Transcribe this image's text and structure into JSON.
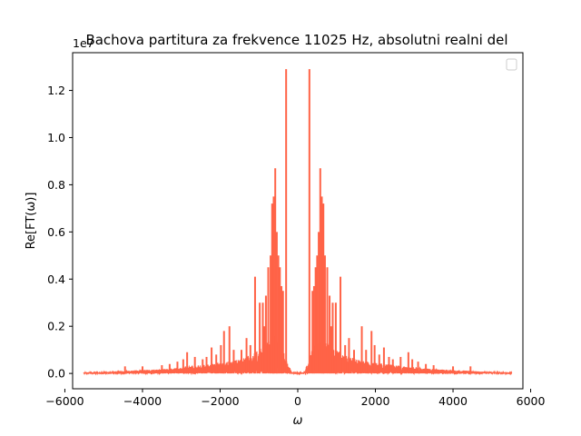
{
  "chart_data": {
    "type": "line",
    "title": "Bachova partitura za frekvence 11025 Hz, absolutni realni del",
    "xlabel": "ω",
    "ylabel": "Re[FT(ω)]",
    "y_offset_label": "1e7",
    "xlim": [
      -5800,
      5800
    ],
    "ylim": [
      -0.065,
      1.36
    ],
    "y_scale": 10000000,
    "x_ticks": [
      -6000,
      -4000,
      -2000,
      0,
      2000,
      4000,
      6000
    ],
    "x_tick_labels": [
      "−6000",
      "−4000",
      "−2000",
      "0",
      "2000",
      "4000",
      "6000"
    ],
    "y_ticks": [
      0.0,
      0.2,
      0.4,
      0.6,
      0.8,
      1.0,
      1.2
    ],
    "y_tick_labels": [
      "0.0",
      "0.2",
      "0.4",
      "0.6",
      "0.8",
      "1.0",
      "1.2"
    ],
    "legend": "top-right",
    "legend_empty": true,
    "series": [
      {
        "color": "#FF6347",
        "baseline": [
          [
            -5512,
            0.004
          ],
          [
            -5000,
            0.006
          ],
          [
            -4500,
            0.01
          ],
          [
            -4000,
            0.015
          ],
          [
            -3500,
            0.018
          ],
          [
            -3000,
            0.025
          ],
          [
            -2500,
            0.035
          ],
          [
            -2000,
            0.045
          ],
          [
            -1500,
            0.06
          ],
          [
            -1200,
            0.08
          ],
          [
            -1000,
            0.1
          ],
          [
            -800,
            0.13
          ],
          [
            -600,
            0.16
          ],
          [
            -400,
            0.12
          ],
          [
            -260,
            0.04
          ],
          [
            -150,
            0.005
          ],
          [
            0,
            0.003
          ],
          [
            150,
            0.005
          ],
          [
            260,
            0.04
          ],
          [
            400,
            0.12
          ],
          [
            600,
            0.16
          ],
          [
            800,
            0.13
          ],
          [
            1000,
            0.1
          ],
          [
            1200,
            0.08
          ],
          [
            1500,
            0.06
          ],
          [
            2000,
            0.045
          ],
          [
            2500,
            0.035
          ],
          [
            3000,
            0.025
          ],
          [
            3500,
            0.018
          ],
          [
            4000,
            0.015
          ],
          [
            4500,
            0.01
          ],
          [
            5000,
            0.006
          ],
          [
            5512,
            0.004
          ]
        ],
        "peaks": [
          [
            -4450,
            0.03
          ],
          [
            -4000,
            0.03
          ],
          [
            -3500,
            0.035
          ],
          [
            -3300,
            0.04
          ],
          [
            -3100,
            0.05
          ],
          [
            -2950,
            0.06
          ],
          [
            -2850,
            0.09
          ],
          [
            -2650,
            0.07
          ],
          [
            -2450,
            0.06
          ],
          [
            -2350,
            0.07
          ],
          [
            -2220,
            0.11
          ],
          [
            -2100,
            0.08
          ],
          [
            -1980,
            0.12
          ],
          [
            -1900,
            0.18
          ],
          [
            -1760,
            0.2
          ],
          [
            -1650,
            0.1
          ],
          [
            -1450,
            0.1
          ],
          [
            -1320,
            0.15
          ],
          [
            -1220,
            0.12
          ],
          [
            -1100,
            0.41
          ],
          [
            -980,
            0.3
          ],
          [
            -900,
            0.3
          ],
          [
            -860,
            0.2
          ],
          [
            -820,
            0.33
          ],
          [
            -760,
            0.45
          ],
          [
            -700,
            0.5
          ],
          [
            -660,
            0.72
          ],
          [
            -620,
            0.75
          ],
          [
            -580,
            0.87
          ],
          [
            -540,
            0.6
          ],
          [
            -500,
            0.5
          ],
          [
            -460,
            0.45
          ],
          [
            -420,
            0.37
          ],
          [
            -380,
            0.35
          ],
          [
            -300,
            1.29
          ],
          [
            300,
            1.29
          ],
          [
            380,
            0.35
          ],
          [
            420,
            0.37
          ],
          [
            460,
            0.45
          ],
          [
            500,
            0.5
          ],
          [
            540,
            0.6
          ],
          [
            580,
            0.87
          ],
          [
            620,
            0.75
          ],
          [
            660,
            0.72
          ],
          [
            700,
            0.5
          ],
          [
            760,
            0.45
          ],
          [
            820,
            0.33
          ],
          [
            860,
            0.2
          ],
          [
            900,
            0.3
          ],
          [
            980,
            0.3
          ],
          [
            1100,
            0.41
          ],
          [
            1220,
            0.12
          ],
          [
            1320,
            0.15
          ],
          [
            1450,
            0.1
          ],
          [
            1650,
            0.2
          ],
          [
            1760,
            0.1
          ],
          [
            1900,
            0.18
          ],
          [
            1980,
            0.12
          ],
          [
            2100,
            0.08
          ],
          [
            2220,
            0.11
          ],
          [
            2350,
            0.07
          ],
          [
            2450,
            0.06
          ],
          [
            2650,
            0.07
          ],
          [
            2850,
            0.09
          ],
          [
            2950,
            0.06
          ],
          [
            3100,
            0.05
          ],
          [
            3300,
            0.04
          ],
          [
            3500,
            0.035
          ],
          [
            4000,
            0.03
          ],
          [
            4450,
            0.03
          ]
        ]
      }
    ]
  }
}
